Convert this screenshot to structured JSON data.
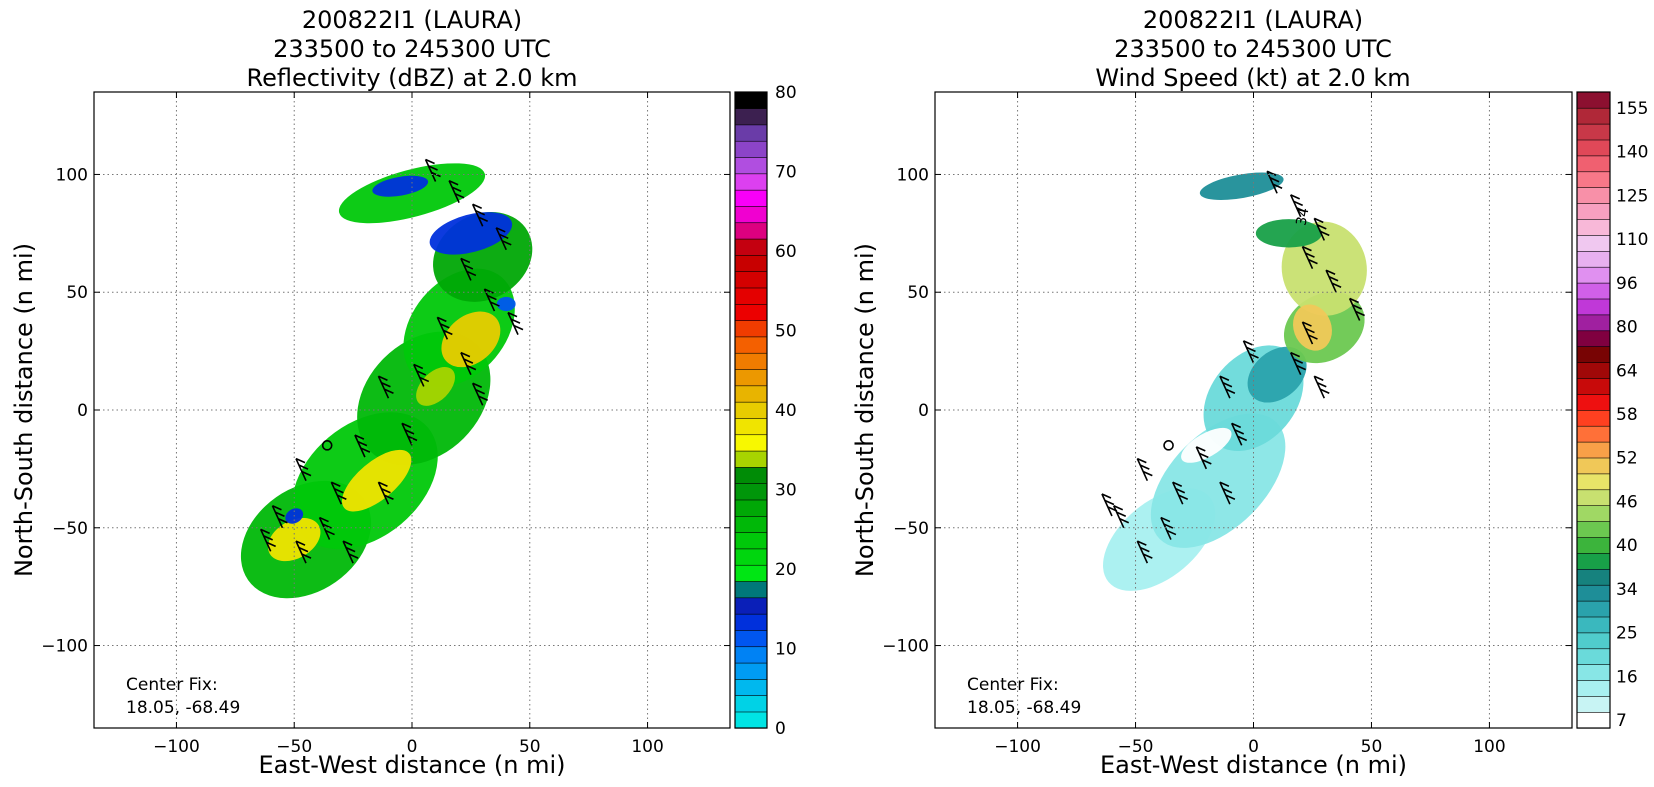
{
  "chart_data": [
    {
      "type": "heatmap",
      "title_lines": [
        "200822I1 (LAURA)",
        "233500 to 245300 UTC",
        "Reflectivity (dBZ) at 2.0 km"
      ],
      "xlabel": "East-West distance (n mi)",
      "ylabel": "North-South distance (n mi)",
      "xlim": [
        -135,
        135
      ],
      "ylim": [
        -135,
        135
      ],
      "xticks": [
        "−100",
        "−50",
        "0",
        "50",
        "100"
      ],
      "yticks": [
        "−100",
        "−50",
        "0",
        "50",
        "100"
      ],
      "grid": true,
      "annotation_lines": [
        "Center Fix:",
        "18.05, -68.49"
      ],
      "colorbar": {
        "min": 0,
        "max": 80,
        "tick_labels": [
          "0",
          "10",
          "20",
          "30",
          "40",
          "50",
          "60",
          "70",
          "80"
        ],
        "colors": [
          "#00e4e4",
          "#00d2e6",
          "#00b8ee",
          "#009cf2",
          "#0082f4",
          "#0056f0",
          "#0030dc",
          "#0a1fb8",
          "#00787a",
          "#00e614",
          "#00d60e",
          "#00c80a",
          "#00b808",
          "#00a806",
          "#00960a",
          "#008c06",
          "#a8d400",
          "#f8f800",
          "#f0e400",
          "#e8cc00",
          "#e8b400",
          "#ec9800",
          "#f07c00",
          "#f46000",
          "#f03c00",
          "#ec0000",
          "#e40000",
          "#d40000",
          "#c80000",
          "#c40010",
          "#dc0080",
          "#f000d0",
          "#f800f8",
          "#dc40f0",
          "#b04ee0",
          "#8c44c8",
          "#6a3ca8",
          "#3c2050",
          "#000000"
        ]
      },
      "fields": [
        {
          "cx": -45,
          "cy": -55,
          "rx": 30,
          "ry": 22,
          "rot": -35,
          "color": "#00b808"
        },
        {
          "cx": -20,
          "cy": -30,
          "rx": 35,
          "ry": 24,
          "rot": -40,
          "color": "#00c80a"
        },
        {
          "cx": 5,
          "cy": 5,
          "rx": 32,
          "ry": 24,
          "rot": -45,
          "color": "#00b808"
        },
        {
          "cx": 20,
          "cy": 35,
          "rx": 28,
          "ry": 20,
          "rot": -50,
          "color": "#00c80a"
        },
        {
          "cx": 30,
          "cy": 65,
          "rx": 22,
          "ry": 18,
          "rot": -30,
          "color": "#00a806"
        },
        {
          "cx": 0,
          "cy": 92,
          "rx": 32,
          "ry": 10,
          "rot": -15,
          "color": "#00c80a"
        },
        {
          "cx": 25,
          "cy": 30,
          "rx": 14,
          "ry": 10,
          "rot": -40,
          "color": "#e8cc00"
        },
        {
          "cx": -15,
          "cy": -30,
          "rx": 18,
          "ry": 8,
          "rot": -40,
          "color": "#f0e400"
        },
        {
          "cx": 10,
          "cy": 10,
          "rx": 10,
          "ry": 6,
          "rot": -45,
          "color": "#a8d400"
        },
        {
          "cx": -50,
          "cy": -55,
          "rx": 12,
          "ry": 8,
          "rot": -30,
          "color": "#f0e400"
        },
        {
          "cx": 25,
          "cy": 75,
          "rx": 18,
          "ry": 8,
          "rot": -15,
          "color": "#0030dc"
        },
        {
          "cx": -5,
          "cy": 95,
          "rx": 12,
          "ry": 4,
          "rot": -10,
          "color": "#0030dc"
        },
        {
          "cx": 40,
          "cy": 45,
          "rx": 4,
          "ry": 3,
          "rot": 0,
          "color": "#0056f0"
        },
        {
          "cx": -50,
          "cy": -45,
          "rx": 4,
          "ry": 3,
          "rot": -30,
          "color": "#0030dc"
        }
      ],
      "barbs": [
        {
          "x": 10,
          "y": 97
        },
        {
          "x": 20,
          "y": 88
        },
        {
          "x": 30,
          "y": 78
        },
        {
          "x": 40,
          "y": 68
        },
        {
          "x": 25,
          "y": 55
        },
        {
          "x": 35,
          "y": 42
        },
        {
          "x": 45,
          "y": 32
        },
        {
          "x": 15,
          "y": 30
        },
        {
          "x": 25,
          "y": 15
        },
        {
          "x": 30,
          "y": 2
        },
        {
          "x": 5,
          "y": 10
        },
        {
          "x": -10,
          "y": 5
        },
        {
          "x": 0,
          "y": -15
        },
        {
          "x": -20,
          "y": -20
        },
        {
          "x": -30,
          "y": -40
        },
        {
          "x": -45,
          "y": -30
        },
        {
          "x": -55,
          "y": -50
        },
        {
          "x": -45,
          "y": -65
        },
        {
          "x": -35,
          "y": -55
        },
        {
          "x": -10,
          "y": -40
        },
        {
          "x": -60,
          "y": -60
        },
        {
          "x": -25,
          "y": -65
        }
      ],
      "center": {
        "x": -36,
        "y": -15
      }
    },
    {
      "type": "heatmap",
      "title_lines": [
        "200822I1 (LAURA)",
        "233500 to 245300 UTC",
        "Wind Speed (kt) at 2.0 km"
      ],
      "xlabel": "East-West distance (n mi)",
      "ylabel": "North-South distance (n mi)",
      "xlim": [
        -135,
        135
      ],
      "ylim": [
        -135,
        135
      ],
      "xticks": [
        "−100",
        "−50",
        "0",
        "50",
        "100"
      ],
      "yticks": [
        "−100",
        "−50",
        "0",
        "50",
        "100"
      ],
      "grid": true,
      "annotation_lines": [
        "Center Fix:",
        "18.05, -68.49"
      ],
      "colorbar": {
        "min": 7,
        "max": 160,
        "tick_labels": [
          "7",
          "16",
          "25",
          "34",
          "40",
          "46",
          "52",
          "58",
          "64",
          "80",
          "96",
          "110",
          "125",
          "140",
          "155"
        ],
        "colors": [
          "#ffffff",
          "#c8f4f4",
          "#a8f0f0",
          "#88e6e6",
          "#6adada",
          "#50cccc",
          "#3ab8be",
          "#2aa2ac",
          "#1e8e98",
          "#16827e",
          "#18a048",
          "#3cb43c",
          "#6cc850",
          "#a0d864",
          "#c8e070",
          "#e8e468",
          "#f0c858",
          "#f8a048",
          "#ff7038",
          "#ff4020",
          "#ee1010",
          "#c80a0a",
          "#a00808",
          "#780404",
          "#800040",
          "#a020a0",
          "#c038d8",
          "#d060e8",
          "#e090f0",
          "#e8b0f0",
          "#f0c8f0",
          "#f8b8d8",
          "#f8a0c0",
          "#f890a8",
          "#f87888",
          "#f06070",
          "#e04858",
          "#c83848",
          "#b02838",
          "#8c1030"
        ]
      },
      "fields": [
        {
          "cx": -40,
          "cy": -55,
          "rx": 28,
          "ry": 16,
          "rot": -40,
          "color": "#a8f0f0"
        },
        {
          "cx": -15,
          "cy": -30,
          "rx": 35,
          "ry": 20,
          "rot": -45,
          "color": "#88e6e6"
        },
        {
          "cx": 0,
          "cy": 5,
          "rx": 25,
          "ry": 18,
          "rot": -50,
          "color": "#6adada"
        },
        {
          "cx": 10,
          "cy": 15,
          "rx": 14,
          "ry": 10,
          "rot": -40,
          "color": "#2aa2ac"
        },
        {
          "cx": 30,
          "cy": 35,
          "rx": 18,
          "ry": 14,
          "rot": -30,
          "color": "#6cc850"
        },
        {
          "cx": 30,
          "cy": 60,
          "rx": 18,
          "ry": 20,
          "rot": -10,
          "color": "#c8e070"
        },
        {
          "cx": 25,
          "cy": 35,
          "rx": 8,
          "ry": 10,
          "rot": -20,
          "color": "#f0c858"
        },
        {
          "cx": 15,
          "cy": 75,
          "rx": 14,
          "ry": 6,
          "rot": 0,
          "color": "#18a048"
        },
        {
          "cx": -5,
          "cy": 95,
          "rx": 18,
          "ry": 5,
          "rot": -10,
          "color": "#1e8e98"
        },
        {
          "cx": -20,
          "cy": -15,
          "rx": 12,
          "ry": 5,
          "rot": -30,
          "color": "#ffffff"
        }
      ],
      "barbs": [
        {
          "x": 10,
          "y": 92
        },
        {
          "x": 20,
          "y": 82
        },
        {
          "x": 30,
          "y": 72
        },
        {
          "x": 25,
          "y": 60
        },
        {
          "x": 35,
          "y": 50
        },
        {
          "x": 45,
          "y": 38
        },
        {
          "x": 25,
          "y": 28
        },
        {
          "x": 20,
          "y": 15
        },
        {
          "x": 30,
          "y": 5
        },
        {
          "x": 0,
          "y": 20
        },
        {
          "x": -10,
          "y": 5
        },
        {
          "x": -5,
          "y": -15
        },
        {
          "x": -20,
          "y": -25
        },
        {
          "x": -30,
          "y": -40
        },
        {
          "x": -45,
          "y": -30
        },
        {
          "x": -55,
          "y": -50
        },
        {
          "x": -45,
          "y": -65
        },
        {
          "x": -35,
          "y": -55
        },
        {
          "x": -10,
          "y": -40
        },
        {
          "x": -60,
          "y": -45
        }
      ],
      "center": {
        "x": -36,
        "y": -15
      },
      "annotation_text": "34"
    }
  ]
}
